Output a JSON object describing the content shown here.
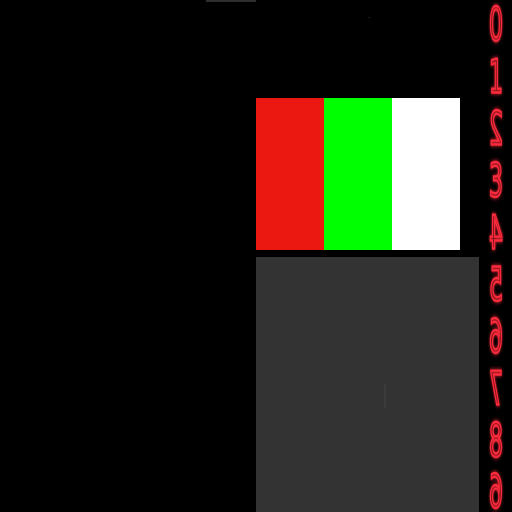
{
  "colors": {
    "background": "#000000",
    "swatches": [
      "#ea1811",
      "#00ff00",
      "#ffffff"
    ],
    "gray_panel": "#333333",
    "digit_stroke": "#ff2a3c"
  },
  "digit_strip": {
    "digits": [
      "0",
      "1",
      "2",
      "3",
      "4",
      "5",
      "6",
      "7",
      "8",
      "9"
    ],
    "orientation": "mirrored"
  }
}
